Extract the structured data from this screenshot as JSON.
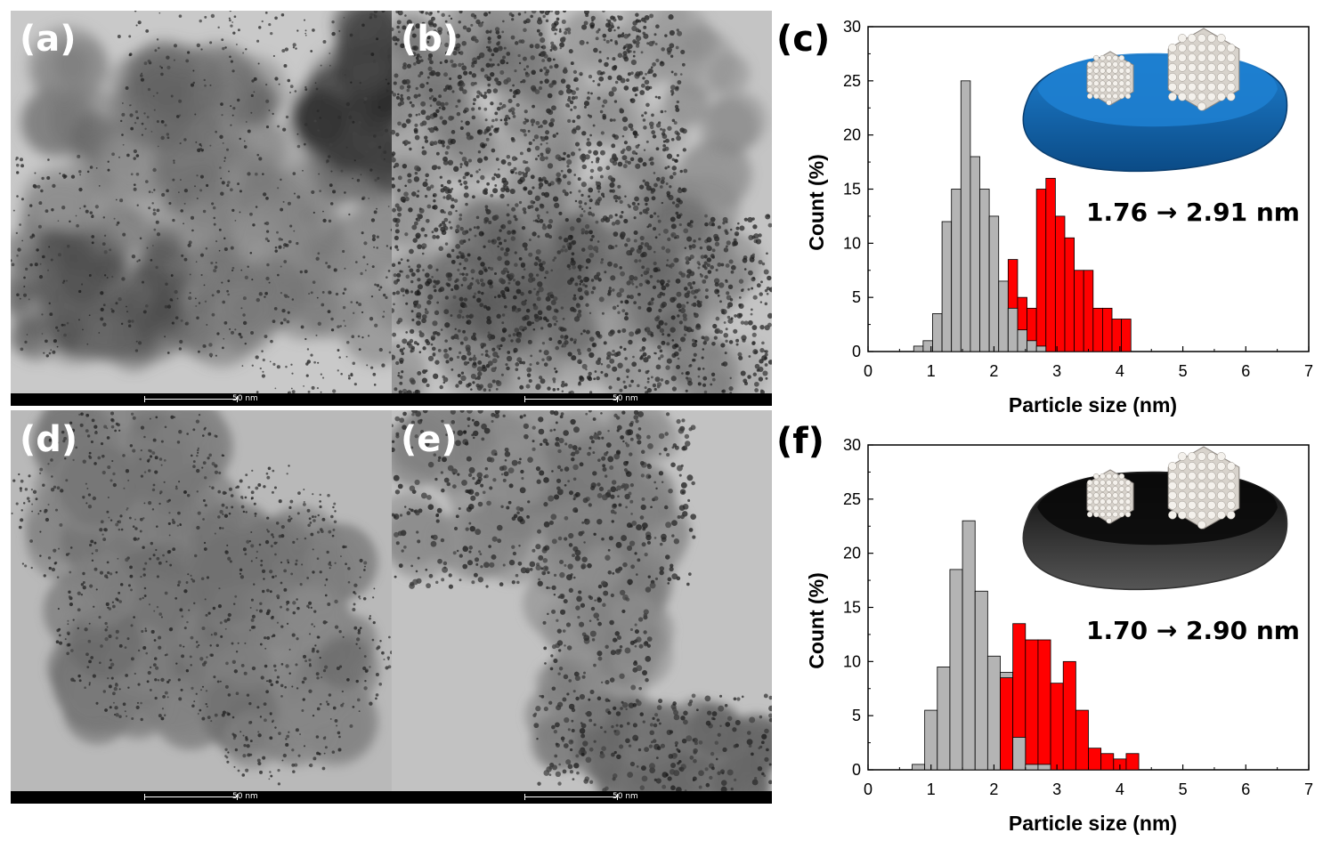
{
  "panels": {
    "a": {
      "label": "(a)",
      "scale_label": "50 nm"
    },
    "b": {
      "label": "(b)",
      "scale_label": "50 nm"
    },
    "c": {
      "label": "(c)"
    },
    "d": {
      "label": "(d)",
      "scale_label": "50 nm"
    },
    "e": {
      "label": "(e)",
      "scale_label": "50 nm"
    },
    "f": {
      "label": "(f)"
    }
  },
  "colors": {
    "gray_bars": "#b4b4b4",
    "red_bars": "#ff0000",
    "support_c": "#1e7fd0",
    "support_f": "#0a0a0a",
    "particle": "#d8d3cc"
  },
  "chart_data": [
    {
      "type": "bar",
      "panel": "c",
      "xlabel": "Particle size (nm)",
      "ylabel": "Count (%)",
      "xlim": [
        0,
        7
      ],
      "ylim": [
        0,
        30
      ],
      "xticks": [
        "0",
        "1",
        "2",
        "3",
        "4",
        "5",
        "6",
        "7"
      ],
      "yticks": [
        "0",
        "5",
        "10",
        "15",
        "20",
        "25",
        "30"
      ],
      "annotation": "1.76 → 2.91 nm",
      "bin_width": 0.15,
      "series": [
        {
          "color": "#b4b4b4",
          "x": [
            0.8,
            0.95,
            1.1,
            1.25,
            1.4,
            1.55,
            1.7,
            1.85,
            2.0,
            2.15,
            2.3,
            2.45,
            2.6,
            2.75
          ],
          "values": [
            0.5,
            1,
            3.5,
            12,
            15,
            25,
            18,
            15,
            12.5,
            6.5,
            4,
            2,
            1,
            0.5
          ]
        },
        {
          "color": "#ff0000",
          "x": [
            2.3,
            2.45,
            2.6,
            2.75,
            2.9,
            3.05,
            3.2,
            3.35,
            3.5,
            3.65,
            3.8,
            3.95,
            4.1
          ],
          "values": [
            8.5,
            5,
            4,
            15,
            16,
            12.5,
            10.5,
            7.5,
            7.5,
            4,
            4,
            3,
            3
          ]
        }
      ]
    },
    {
      "type": "bar",
      "panel": "f",
      "xlabel": "Particle size (nm)",
      "ylabel": "Count (%)",
      "xlim": [
        0,
        7
      ],
      "ylim": [
        0,
        30
      ],
      "xticks": [
        "0",
        "1",
        "2",
        "3",
        "4",
        "5",
        "6",
        "7"
      ],
      "yticks": [
        "0",
        "5",
        "10",
        "15",
        "20",
        "25",
        "30"
      ],
      "annotation": "1.70 → 2.90 nm",
      "bin_width": 0.2,
      "series": [
        {
          "color": "#b4b4b4",
          "x": [
            0.8,
            1.0,
            1.2,
            1.4,
            1.6,
            1.8,
            2.0,
            2.2,
            2.4,
            2.6,
            2.8
          ],
          "values": [
            0.5,
            5.5,
            9.5,
            18.5,
            23,
            16.5,
            10.5,
            9,
            3,
            0.5,
            0.5
          ]
        },
        {
          "color": "#ff0000",
          "x": [
            2.2,
            2.4,
            2.6,
            2.8,
            3.0,
            3.2,
            3.4,
            3.6,
            3.8,
            4.0,
            4.2
          ],
          "values": [
            8.5,
            13.5,
            12,
            12,
            8,
            10,
            5.5,
            2,
            1.5,
            1,
            1.5
          ]
        }
      ]
    }
  ]
}
